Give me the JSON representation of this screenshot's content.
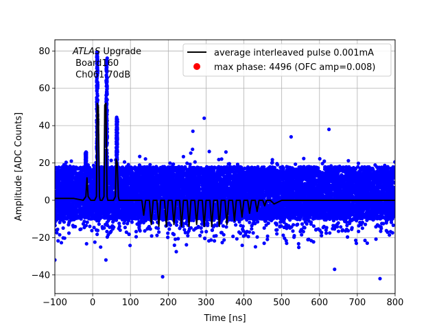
{
  "chart_data": {
    "type": "scatter",
    "title": "",
    "xlabel": "Time [ns]",
    "ylabel": "Amplitude [ADC Counts]",
    "xlim": [
      -100,
      800
    ],
    "ylim": [
      -50,
      86
    ],
    "x_ticks": [
      -100,
      0,
      100,
      200,
      300,
      400,
      500,
      600,
      700,
      800
    ],
    "y_ticks": [
      -40,
      -20,
      0,
      20,
      40,
      60,
      80
    ],
    "x_tick_labels": [
      "−100",
      "0",
      "100",
      "200",
      "300",
      "400",
      "500",
      "600",
      "700",
      "800"
    ],
    "y_tick_labels": [
      "−40",
      "−20",
      "0",
      "20",
      "40",
      "60",
      "80"
    ],
    "grid": true,
    "legend_position": "top-right",
    "annotation": {
      "experiment": "ATLAS",
      "line1_rest": " Upgrade",
      "line2": " Board160",
      "line3": " Ch061 70dB"
    },
    "series": [
      {
        "name": "average interleaved pulse 0.001mA",
        "kind": "line",
        "color": "#000000",
        "x": [
          -100,
          -50,
          -25,
          -18,
          -15,
          -12,
          -5,
          0,
          5,
          10,
          12,
          15,
          18,
          20,
          25,
          30,
          32,
          35,
          38,
          40,
          45,
          50,
          55,
          60,
          62,
          65,
          68,
          70,
          80,
          100,
          130,
          135,
          140,
          145,
          150,
          155,
          160,
          165,
          170,
          175,
          180,
          185,
          190,
          195,
          200,
          205,
          210,
          215,
          220,
          225,
          230,
          235,
          240,
          245,
          250,
          255,
          260,
          265,
          270,
          275,
          280,
          285,
          290,
          295,
          300,
          305,
          310,
          315,
          320,
          325,
          330,
          335,
          340,
          345,
          350,
          355,
          360,
          365,
          370,
          375,
          380,
          385,
          390,
          395,
          400,
          405,
          410,
          415,
          420,
          425,
          430,
          435,
          440,
          445,
          450,
          455,
          460,
          470,
          480,
          500,
          550,
          600,
          650,
          700,
          750,
          800
        ],
        "y": [
          1,
          1,
          0,
          2,
          12,
          2,
          0,
          0,
          0,
          2,
          52,
          50,
          2,
          0,
          0,
          2,
          51,
          52,
          2,
          0,
          0,
          0,
          0,
          2,
          22,
          20,
          2,
          0,
          0,
          0,
          0,
          -8,
          0,
          0,
          0,
          -13,
          0,
          0,
          0,
          -14,
          0,
          0,
          0,
          -14,
          0,
          0,
          0,
          -13,
          0,
          0,
          0,
          -14,
          0,
          0,
          0,
          -14,
          0,
          0,
          0,
          -13,
          0,
          0,
          0,
          -14,
          0,
          0,
          0,
          -14,
          0,
          0,
          0,
          -14,
          0,
          0,
          0,
          -13,
          0,
          0,
          0,
          -11,
          0,
          0,
          0,
          -9,
          0,
          0,
          0,
          -7,
          0,
          0,
          0,
          -6,
          0,
          0,
          0,
          -3,
          0,
          0,
          -2,
          0,
          0,
          0,
          0,
          0,
          0,
          0
        ]
      },
      {
        "name": "max phase: 4496 (OFC amp=0.008)",
        "kind": "points",
        "color": "#ff0000",
        "x": [],
        "y": []
      },
      {
        "name": "interleaved samples",
        "kind": "points",
        "color": "#0000ff",
        "visible_in_legend": false,
        "band": {
          "mean": 0,
          "spread": 13,
          "core_min": -10,
          "core_max": 18
        },
        "peaks": [
          {
            "x": 12,
            "max": 80
          },
          {
            "x": 37,
            "max": 77
          },
          {
            "x": 64,
            "max": 45
          },
          {
            "x": -18,
            "max": 26
          }
        ],
        "outliers": [
          {
            "x": -100,
            "y": -32
          },
          {
            "x": 35,
            "y": -32
          },
          {
            "x": 185,
            "y": -41
          },
          {
            "x": 265,
            "y": 37
          },
          {
            "x": 295,
            "y": 44
          },
          {
            "x": 640,
            "y": -37
          },
          {
            "x": 760,
            "y": -42
          },
          {
            "x": 525,
            "y": 34
          },
          {
            "x": 625,
            "y": 38
          }
        ]
      }
    ]
  }
}
